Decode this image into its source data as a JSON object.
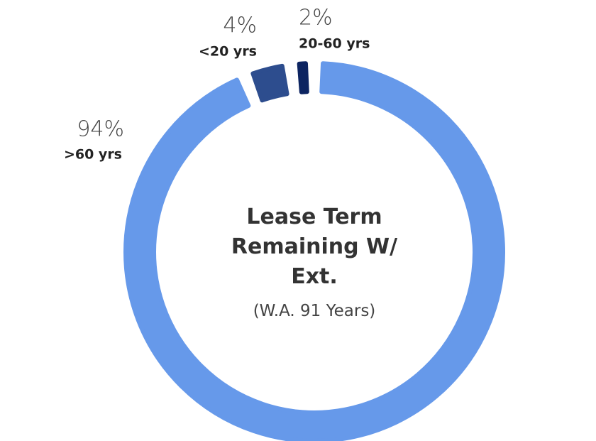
{
  "chart_data": {
    "type": "donut",
    "title": "Lease Term Remaining W/ Ext.",
    "subtitle": "(W.A. 91 Years)",
    "categories": [
      ">60 yrs",
      "<20 yrs",
      "20-60 yrs"
    ],
    "values": [
      94,
      4,
      2
    ],
    "value_labels": [
      "94%",
      "4%",
      "2%"
    ],
    "colors": [
      "#6699ea",
      "#2d4d8e",
      "#0c2461"
    ]
  }
}
